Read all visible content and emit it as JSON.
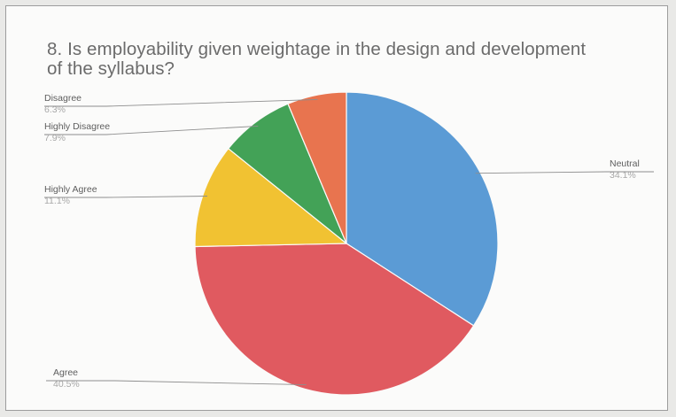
{
  "chart_data": {
    "type": "pie",
    "title": "8. Is employability given weightage in the design and development of the syllabus?",
    "slices": [
      {
        "label": "Neutral",
        "value": 34.1,
        "display": "34.1%",
        "color": "#5b9bd5"
      },
      {
        "label": "Agree",
        "value": 40.5,
        "display": "40.5%",
        "color": "#e05a60"
      },
      {
        "label": "Highly Agree",
        "value": 11.1,
        "display": "11.1%",
        "color": "#f1c232"
      },
      {
        "label": "Highly Disagree",
        "value": 7.9,
        "display": "7.9%",
        "color": "#43a257"
      },
      {
        "label": "Disagree",
        "value": 6.3,
        "display": "6.3%",
        "color": "#e8744f"
      }
    ]
  }
}
